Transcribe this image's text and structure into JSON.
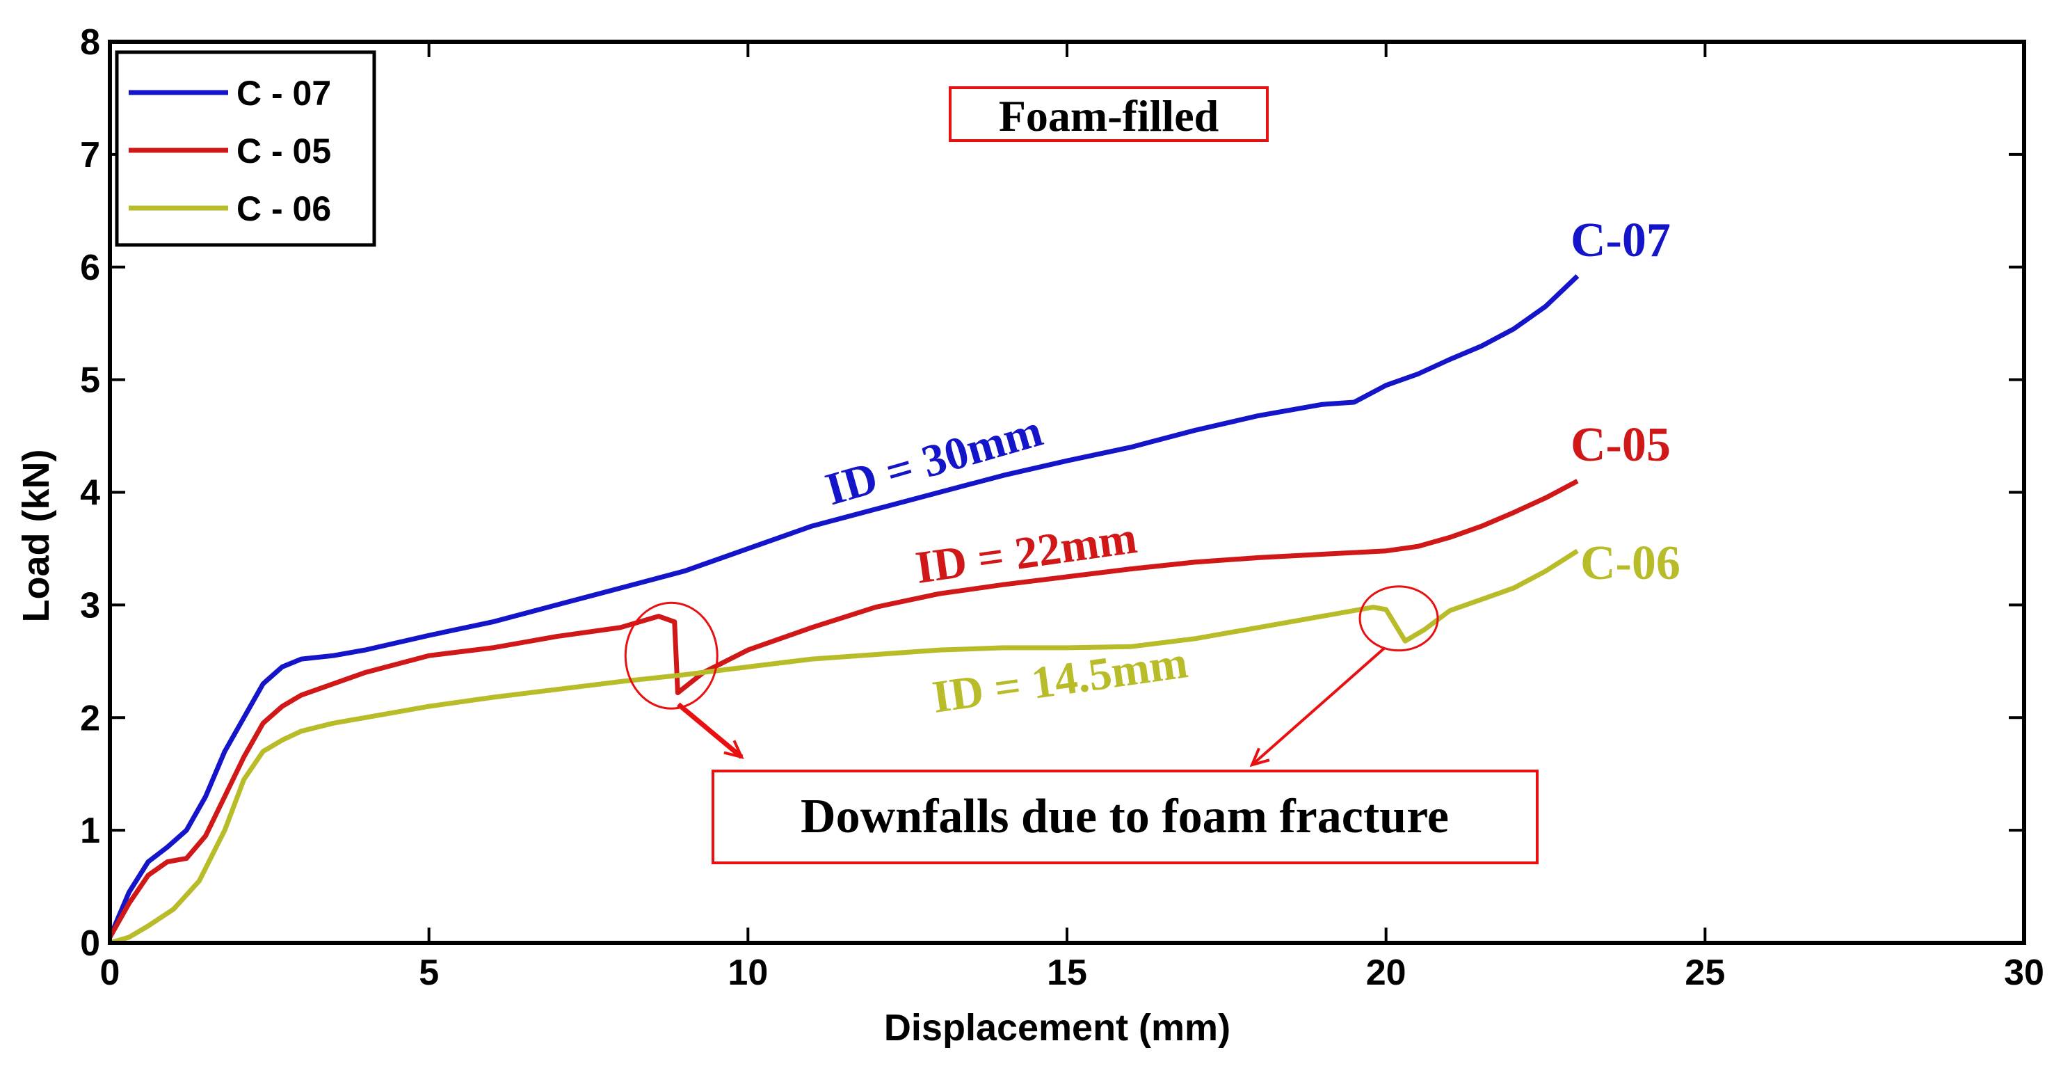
{
  "chart_data": {
    "type": "line",
    "xlabel": "Displacement (mm)",
    "ylabel": "Load (kN)",
    "xlim": [
      0,
      30
    ],
    "ylim": [
      0,
      8
    ],
    "xticks": [
      "0",
      "5",
      "10",
      "15",
      "20",
      "25",
      "30"
    ],
    "yticks": [
      "0",
      "1",
      "2",
      "3",
      "4",
      "5",
      "6",
      "7",
      "8"
    ],
    "legend_position": "top-left",
    "colors": {
      "C-07": "#1414c8",
      "C-05": "#d01818",
      "C-06": "#b8bc28",
      "annotation": "#e81010"
    },
    "series": [
      {
        "name": "C - 07",
        "end_label": "C-07",
        "id_label": "ID = 30mm",
        "x": [
          0,
          0.3,
          0.6,
          0.9,
          1.2,
          1.5,
          1.8,
          2.1,
          2.4,
          2.7,
          3.0,
          3.5,
          4,
          5,
          6,
          7,
          8,
          9,
          10,
          11,
          12,
          13,
          14,
          15,
          16,
          17,
          18,
          19,
          19.5,
          20,
          20.5,
          21,
          21.5,
          22,
          22.5,
          23
        ],
        "y": [
          0.05,
          0.45,
          0.72,
          0.85,
          1.0,
          1.3,
          1.7,
          2.0,
          2.3,
          2.45,
          2.52,
          2.55,
          2.6,
          2.73,
          2.85,
          3.0,
          3.15,
          3.3,
          3.5,
          3.7,
          3.85,
          4.0,
          4.15,
          4.28,
          4.4,
          4.55,
          4.68,
          4.78,
          4.8,
          4.95,
          5.05,
          5.18,
          5.3,
          5.45,
          5.65,
          5.92
        ]
      },
      {
        "name": "C - 05",
        "end_label": "C-05",
        "id_label": "ID = 22mm",
        "x": [
          0,
          0.3,
          0.6,
          0.9,
          1.2,
          1.5,
          1.8,
          2.1,
          2.4,
          2.7,
          3.0,
          3.5,
          4,
          5,
          6,
          7,
          8,
          8.6,
          8.85,
          8.9,
          9.3,
          10,
          11,
          12,
          13,
          14,
          15,
          16,
          17,
          18,
          19,
          20,
          20.5,
          21,
          21.5,
          22,
          22.5,
          23
        ],
        "y": [
          0.05,
          0.35,
          0.6,
          0.72,
          0.75,
          0.95,
          1.3,
          1.65,
          1.95,
          2.1,
          2.2,
          2.3,
          2.4,
          2.55,
          2.62,
          2.72,
          2.8,
          2.9,
          2.85,
          2.22,
          2.4,
          2.6,
          2.8,
          2.98,
          3.1,
          3.18,
          3.25,
          3.32,
          3.38,
          3.42,
          3.45,
          3.48,
          3.52,
          3.6,
          3.7,
          3.82,
          3.95,
          4.1
        ]
      },
      {
        "name": "C - 06",
        "end_label": "C-06",
        "id_label": "ID = 14.5mm",
        "x": [
          0,
          0.3,
          0.6,
          1.0,
          1.4,
          1.8,
          2.1,
          2.4,
          2.7,
          3.0,
          3.5,
          4,
          5,
          6,
          7,
          8,
          9,
          10,
          11,
          12,
          13,
          14,
          15,
          16,
          17,
          18,
          19,
          19.8,
          20.0,
          20.3,
          20.6,
          21,
          21.5,
          22,
          22.5,
          23
        ],
        "y": [
          0.0,
          0.05,
          0.15,
          0.3,
          0.55,
          1.0,
          1.45,
          1.7,
          1.8,
          1.88,
          1.95,
          2.0,
          2.1,
          2.18,
          2.25,
          2.32,
          2.38,
          2.45,
          2.52,
          2.56,
          2.6,
          2.62,
          2.62,
          2.63,
          2.7,
          2.8,
          2.9,
          2.98,
          2.96,
          2.68,
          2.78,
          2.95,
          3.05,
          3.15,
          3.3,
          3.48
        ]
      }
    ],
    "annotations": {
      "title_box": "Foam-filled",
      "note_box": "Downfalls due to foam fracture",
      "circles": [
        {
          "x": 8.8,
          "y": 2.55
        },
        {
          "x": 20.2,
          "y": 2.88
        }
      ],
      "arrow_targets": [
        {
          "x": 9.9,
          "y": 1.65
        },
        {
          "x": 17.9,
          "y": 1.58
        }
      ]
    }
  }
}
